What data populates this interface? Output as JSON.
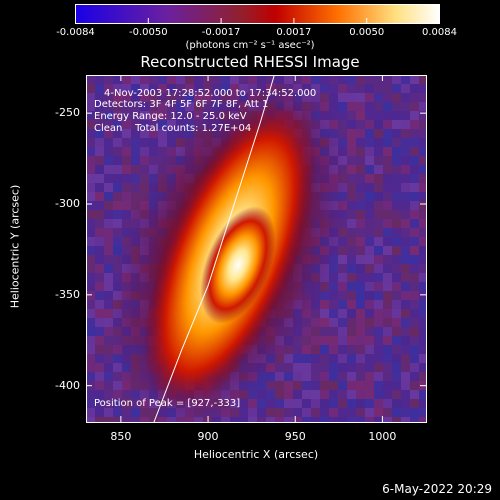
{
  "colorbar": {
    "ticks": [
      "-0.0084",
      "-0.0050",
      "-0.0017",
      "0.0017",
      "0.0050",
      "0.0084"
    ],
    "unit": "(photons cm⁻² s⁻¹ asec⁻²)",
    "colors": [
      "#1a00e6",
      "#6a20a0",
      "#902030",
      "#c00000",
      "#ff7000",
      "#ffe080",
      "#ffffff"
    ]
  },
  "chart_data": {
    "type": "heatmap",
    "title": "Reconstructed RHESSI Image",
    "xlabel": "Heliocentric X (arcsec)",
    "ylabel": "Heliocentric Y (arcsec)",
    "xlim": [
      830,
      1025
    ],
    "ylim": [
      -420,
      -229
    ],
    "x_ticks": [
      "850",
      "900",
      "950",
      "1000"
    ],
    "y_ticks": [
      "-250",
      "-300",
      "-350",
      "-400"
    ],
    "x_tick_values": [
      850,
      900,
      950,
      1000
    ],
    "y_tick_values": [
      -250,
      -300,
      -350,
      -400
    ],
    "value_range": [
      -0.0084,
      0.0084
    ],
    "peak": {
      "x": 927,
      "y": -333
    },
    "limb_curve": [
      [
        869,
        -420
      ],
      [
        885,
        -380
      ],
      [
        900,
        -345
      ],
      [
        915,
        -300
      ],
      [
        930,
        -255
      ],
      [
        938,
        -229
      ]
    ],
    "annotations": [
      "4-Nov-2003 17:28:52.000 to 17:34:52.000",
      "Detectors: 3F 4F 5F 6F 7F 8F, Att 1",
      "Energy Range: 12.0 - 25.0 keV",
      "Clean    Total counts: 1.27E+04"
    ],
    "peak_label": "Position of Peak = [927,-333]"
  },
  "footer": "6-May-2022 20:29"
}
